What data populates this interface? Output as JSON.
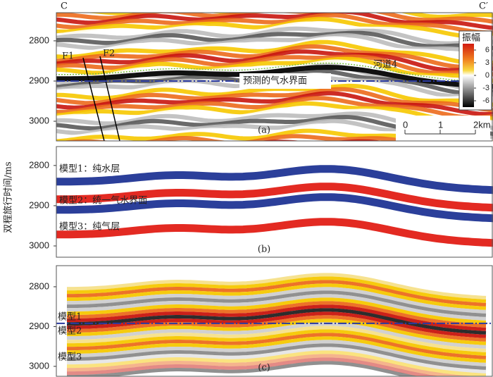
{
  "header": {
    "left": "C",
    "right": "C′"
  },
  "y_axis_label": "双程旅行时间/ms",
  "chart_data": [
    {
      "type": "seismic",
      "ylim": [
        2730,
        3049
      ],
      "yticks": [
        2800,
        2900,
        3000
      ],
      "panel_label": "(a)",
      "annotations": [
        "F1",
        "F2",
        "河道4",
        "预测的气水界面"
      ],
      "gas_water_contact": 2900,
      "colorbar": {
        "title": "振幅",
        "clim": [
          -7.5,
          7.5
        ],
        "ticks": [
          6,
          3,
          0,
          -3,
          -6
        ]
      },
      "scale_bar": {
        "ticks": [
          0,
          1,
          {
            "value": 2,
            "label": "2km"
          }
        ]
      }
    },
    {
      "type": "model",
      "ylim": [
        2753,
        3028
      ],
      "yticks": [
        2800,
        2900,
        3000
      ],
      "panel_label": "(b)",
      "models": [
        "模型1：纯水层",
        "模型2：统一气水界面",
        "模型3：纯气层"
      ]
    },
    {
      "type": "synthetic",
      "ylim": [
        2747,
        3025
      ],
      "yticks": [
        2800,
        2900,
        3000
      ],
      "panel_label": "(c)",
      "models": [
        "模型1",
        "模型2",
        "模型3"
      ],
      "gas_water_contact": 2892
    }
  ]
}
